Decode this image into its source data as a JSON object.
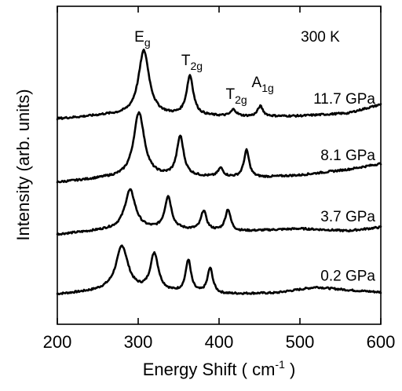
{
  "chart_data": {
    "type": "line",
    "title": "",
    "xlabel": "Energy Shift ( cm",
    "xlabel_sup": "-1",
    "xlabel_end": " )",
    "ylabel": "Intensity (arb. units)",
    "xlim": [
      200,
      600
    ],
    "x_ticks": [
      "200",
      "300",
      "400",
      "500",
      "600"
    ],
    "x_tick_values": [
      200,
      300,
      400,
      500,
      600
    ],
    "grid": false,
    "temperature_label": "300 K",
    "peak_labels": [
      {
        "base": "E",
        "sub": "g",
        "x": 305
      },
      {
        "base": "T",
        "sub": "2g",
        "x": 363
      },
      {
        "base": "T",
        "sub": "2g",
        "x": 418
      },
      {
        "base": "A",
        "sub": "1g",
        "x": 450
      }
    ],
    "series": [
      {
        "name": "0.2 GPa",
        "baseline": 0.0,
        "background": [
          [
            200,
            0.0
          ],
          [
            260,
            0.05
          ],
          [
            320,
            0.03
          ],
          [
            400,
            0.0
          ],
          [
            470,
            0.02
          ],
          [
            520,
            0.1
          ],
          [
            560,
            0.06
          ],
          [
            600,
            0.03
          ]
        ],
        "peaks": [
          {
            "x": 280,
            "height": 0.62,
            "width": 9
          },
          {
            "x": 320,
            "height": 0.52,
            "width": 6
          },
          {
            "x": 362,
            "height": 0.45,
            "width": 4
          },
          {
            "x": 389,
            "height": 0.35,
            "width": 4
          }
        ]
      },
      {
        "name": "3.7 GPa",
        "baseline": 0.83,
        "background": [
          [
            200,
            0.0
          ],
          [
            260,
            0.06
          ],
          [
            340,
            0.07
          ],
          [
            420,
            0.04
          ],
          [
            500,
            0.08
          ],
          [
            560,
            0.05
          ],
          [
            600,
            0.1
          ]
        ],
        "peaks": [
          {
            "x": 290,
            "height": 0.55,
            "width": 8
          },
          {
            "x": 337,
            "height": 0.45,
            "width": 5
          },
          {
            "x": 381,
            "height": 0.27,
            "width": 4
          },
          {
            "x": 411,
            "height": 0.3,
            "width": 4
          }
        ]
      },
      {
        "name": "8.1 GPa",
        "baseline": 1.55,
        "background": [
          [
            200,
            0.0
          ],
          [
            260,
            0.06
          ],
          [
            360,
            0.08
          ],
          [
            440,
            0.06
          ],
          [
            500,
            0.1
          ],
          [
            560,
            0.18
          ],
          [
            600,
            0.26
          ]
        ],
        "peaks": [
          {
            "x": 301,
            "height": 0.9,
            "width": 8
          },
          {
            "x": 352,
            "height": 0.55,
            "width": 5
          },
          {
            "x": 402,
            "height": 0.12,
            "width": 4
          },
          {
            "x": 434,
            "height": 0.38,
            "width": 4
          }
        ]
      },
      {
        "name": "11.7 GPa",
        "baseline": 2.43,
        "background": [
          [
            200,
            0.0
          ],
          [
            260,
            0.05
          ],
          [
            360,
            0.04
          ],
          [
            440,
            0.03
          ],
          [
            500,
            0.04
          ],
          [
            560,
            0.08
          ],
          [
            600,
            0.2
          ]
        ],
        "peaks": [
          {
            "x": 307,
            "height": 0.9,
            "width": 8
          },
          {
            "x": 364,
            "height": 0.55,
            "width": 5
          },
          {
            "x": 418,
            "height": 0.09,
            "width": 4
          },
          {
            "x": 451,
            "height": 0.14,
            "width": 4
          }
        ]
      }
    ]
  }
}
